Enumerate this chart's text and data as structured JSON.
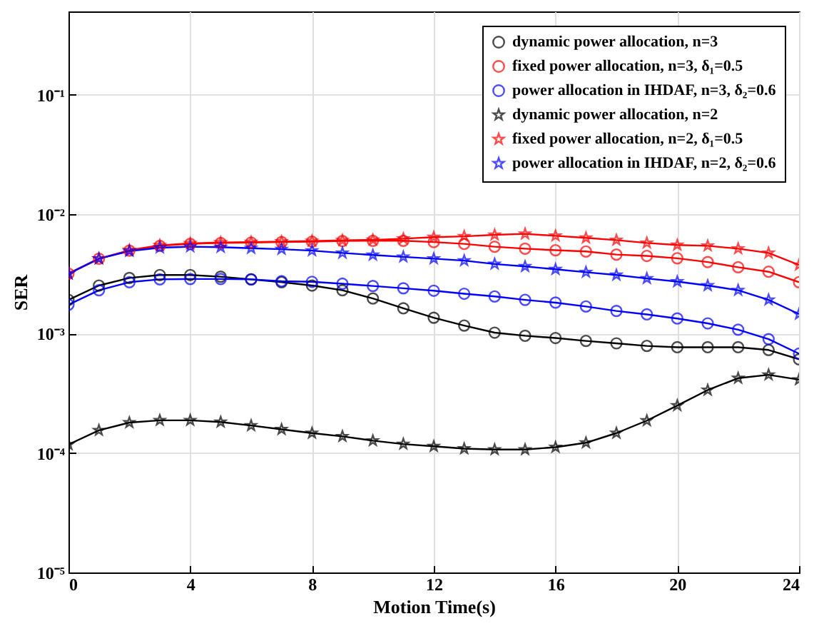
{
  "chart_data": {
    "type": "line",
    "xlabel": "Motion Time(s)",
    "ylabel": "SER",
    "log": "y",
    "grid": true,
    "legend": "top right",
    "line_style": "solid",
    "x": [
      0,
      1,
      2,
      3,
      4,
      5,
      6,
      7,
      8,
      9,
      10,
      11,
      12,
      13,
      14,
      15,
      16,
      17,
      18,
      19,
      20,
      21,
      22,
      23,
      24
    ],
    "xlim": [
      0,
      24
    ],
    "xticks": [
      0,
      4,
      8,
      12,
      16,
      20,
      24
    ],
    "ylim": [
      1e-05,
      0.5
    ],
    "yticks": [
      {
        "value": 1e-05,
        "label": "10⁻⁵"
      },
      {
        "value": 0.0001,
        "label": "10⁻⁴"
      },
      {
        "value": 0.001,
        "label": "10⁻³"
      },
      {
        "value": 0.01,
        "label": "10⁻²"
      },
      {
        "value": 0.1,
        "label": "10⁻¹"
      }
    ],
    "series": [
      {
        "name": "dynamic power allocation, n=3",
        "color": "#000000",
        "marker": "circle",
        "values": [
          0.00192,
          0.00253,
          0.00293,
          0.0031,
          0.0031,
          0.003,
          0.00285,
          0.0027,
          0.00253,
          0.00231,
          0.00197,
          0.00163,
          0.00136,
          0.00117,
          0.00102,
          0.00096,
          0.00092,
          0.00087,
          0.00083,
          0.00079,
          0.00077,
          0.00077,
          0.00077,
          0.00073,
          0.00061
        ]
      },
      {
        "name": "fixed power allocation, n=3, δ₁=0.5",
        "color": "#ff0000",
        "marker": "circle",
        "values": [
          0.00318,
          0.00425,
          0.00496,
          0.00544,
          0.00565,
          0.00575,
          0.0058,
          0.00585,
          0.0059,
          0.00597,
          0.006,
          0.006,
          0.00585,
          0.00565,
          0.00535,
          0.00515,
          0.005,
          0.00488,
          0.0046,
          0.00448,
          0.00428,
          0.00398,
          0.0036,
          0.0033,
          0.0027
        ]
      },
      {
        "name": "power allocation in IHDAF, n=3, δ₂=0.6",
        "color": "#0000ff",
        "marker": "circle",
        "values": [
          0.00175,
          0.00231,
          0.0027,
          0.00285,
          0.00287,
          0.00287,
          0.00285,
          0.00275,
          0.00272,
          0.00262,
          0.00251,
          0.0024,
          0.00229,
          0.00216,
          0.00205,
          0.00192,
          0.00182,
          0.00169,
          0.00155,
          0.00145,
          0.00134,
          0.00122,
          0.00108,
          0.0009,
          0.00068
        ]
      },
      {
        "name": "dynamic power allocation, n=2",
        "color": "#000000",
        "marker": "star",
        "values": [
          0.000118,
          0.000155,
          0.00018,
          0.000188,
          0.000188,
          0.000182,
          0.00017,
          0.000158,
          0.000147,
          0.000138,
          0.000127,
          0.000119,
          0.000114,
          0.000109,
          0.000107,
          0.000107,
          0.000112,
          0.000122,
          0.000147,
          0.000187,
          0.00025,
          0.000337,
          0.000424,
          0.000452,
          0.000412
        ]
      },
      {
        "name": "fixed power allocation, n=2, δ₁=0.5",
        "color": "#ff0000",
        "marker": "star",
        "values": [
          0.00318,
          0.00425,
          0.005,
          0.0055,
          0.0057,
          0.0058,
          0.00585,
          0.0059,
          0.00597,
          0.00605,
          0.0061,
          0.00625,
          0.00643,
          0.00653,
          0.00672,
          0.00685,
          0.0066,
          0.00635,
          0.00608,
          0.00575,
          0.00553,
          0.00544,
          0.00515,
          0.00474,
          0.00376
        ]
      },
      {
        "name": "power allocation in IHDAF, n=2, δ₂=0.6",
        "color": "#0000ff",
        "marker": "star",
        "values": [
          0.00318,
          0.00425,
          0.00492,
          0.00525,
          0.00535,
          0.0053,
          0.0052,
          0.0051,
          0.00496,
          0.00474,
          0.00456,
          0.0044,
          0.00425,
          0.00409,
          0.00383,
          0.00366,
          0.00346,
          0.00327,
          0.0031,
          0.0029,
          0.00273,
          0.00253,
          0.00231,
          0.00192,
          0.00146
        ]
      }
    ]
  }
}
